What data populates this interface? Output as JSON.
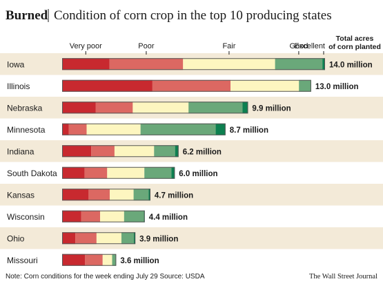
{
  "chart_data": {
    "type": "bar",
    "stacked": true,
    "orientation": "horizontal",
    "title": "Burned",
    "subtitle": "Condition of corn crop in the top 10 producing states",
    "acres_header": [
      "Total acres",
      "of corn planted"
    ],
    "categories": [
      "Iowa",
      "Illinois",
      "Nebraska",
      "Minnesota",
      "Indiana",
      "South Dakota",
      "Kansas",
      "Wisconsin",
      "Ohio",
      "Missouri"
    ],
    "acres_labels": [
      "14.0 million",
      "13.0 million",
      "9.9 million",
      "8.7 million",
      "6.2 million",
      "6.0 million",
      "4.7 million",
      "4.4 million",
      "3.9 million",
      "3.6 million"
    ],
    "acres_million": [
      14.0,
      13.0,
      9.9,
      8.7,
      6.2,
      6.0,
      4.7,
      4.4,
      3.9,
      3.6
    ],
    "series": [
      {
        "name": "Very poor",
        "color": "#c8292f",
        "values": [
          18,
          37,
          18,
          4,
          25,
          20,
          30,
          23,
          18,
          34
        ]
      },
      {
        "name": "Poor",
        "color": "#dc6862",
        "values": [
          28,
          32,
          20,
          11,
          20,
          20,
          24,
          23,
          29,
          26
        ]
      },
      {
        "name": "Fair",
        "color": "#fdf6c0",
        "values": [
          35,
          28,
          30,
          33,
          34,
          33,
          27,
          29,
          34,
          14
        ]
      },
      {
        "name": "Good",
        "color": "#6aa87a",
        "values": [
          18,
          5,
          29,
          46,
          18,
          24,
          17,
          24,
          17,
          6
        ]
      },
      {
        "name": "Excellent",
        "color": "#0d8050",
        "values": [
          1,
          0,
          3,
          6,
          3,
          3,
          2,
          1,
          2,
          0
        ]
      }
    ],
    "xlim": [
      0,
      100
    ],
    "legend": "top"
  },
  "footer": {
    "note": "Note: Corn conditions for the week ending July 29   Source: USDA",
    "source": "The Wall Street Journal"
  }
}
